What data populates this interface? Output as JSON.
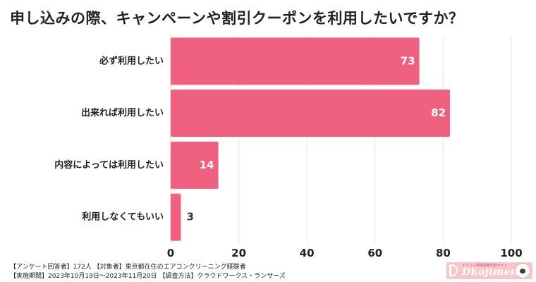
{
  "chart_data": {
    "type": "bar",
    "orientation": "horizontal",
    "title": "申し込みの際、キャンペーンや割引クーポンを利用したいですか？",
    "categories": [
      "必ず利用したい",
      "出来れば利用したい",
      "内容によっては利用したい",
      "利用しなくてもいい"
    ],
    "values": [
      73,
      82,
      14,
      3
    ],
    "xlim": [
      0,
      100
    ],
    "xticks": [
      0,
      20,
      40,
      60,
      80,
      100
    ],
    "grid": true,
    "bar_color": "#f06180",
    "label_inside_color": "#ffffff",
    "label_outside_color": "#333333",
    "grid_color": "#e6e6e6"
  },
  "footer": {
    "line1": "【アンケート回答者】172人 【対象者】東京都在住のエアコンクリーニング経験者",
    "line2": "【実施期間】2023年10月19日～2023年11月20日 【調査方法】クラウドワークス・ランサーズ"
  },
  "logo": {
    "brand": "Dkojimemo",
    "tagline": "エアコン掃除業者比較サイト"
  }
}
